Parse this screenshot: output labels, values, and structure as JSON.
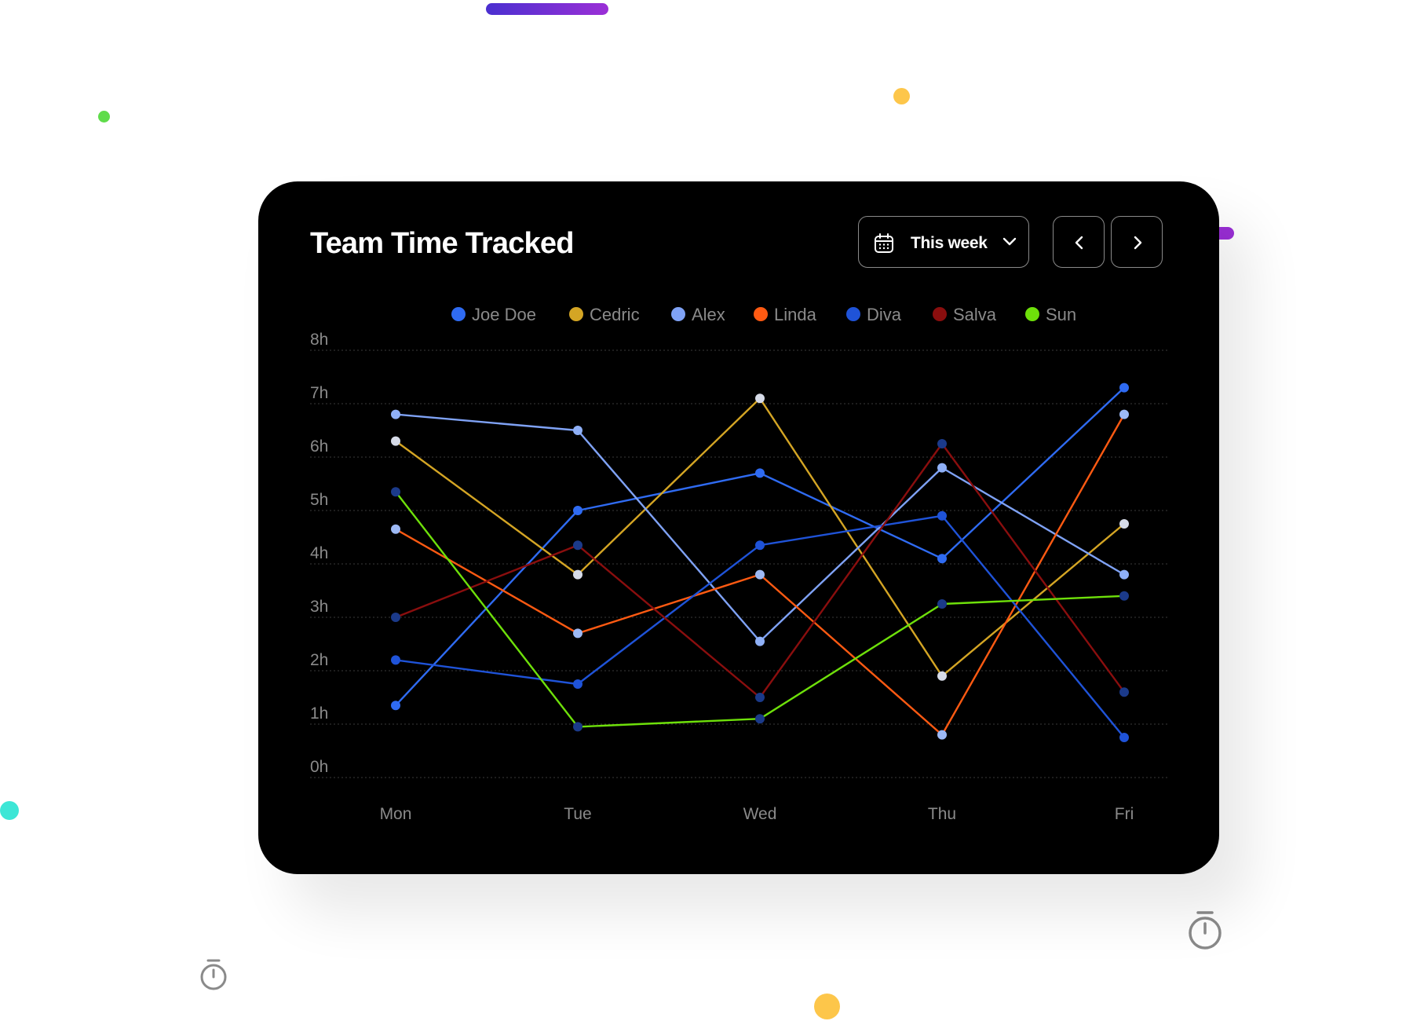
{
  "card": {
    "title": "Team Time Tracked",
    "period_label": "This week",
    "prev_icon": "chevron-left-icon",
    "next_icon": "chevron-right-icon",
    "calendar_icon": "calendar-icon",
    "dropdown_icon": "chevron-down-icon"
  },
  "decorations": {
    "stopwatch_icon": "stopwatch-icon"
  },
  "chart_data": {
    "type": "line",
    "title": "Team Time Tracked",
    "categories": [
      "Mon",
      "Tue",
      "Wed",
      "Thu",
      "Fri"
    ],
    "y_ticks": [
      "0h",
      "1h",
      "2h",
      "3h",
      "4h",
      "5h",
      "6h",
      "7h",
      "8h"
    ],
    "ylim": [
      0,
      8
    ],
    "grid": true,
    "legend_position": "top-center",
    "series": [
      {
        "name": "Joe Doe",
        "color": "#2f6bf2",
        "marker": "#2f6bf2",
        "values": [
          1.35,
          5.0,
          5.7,
          4.1,
          7.3
        ]
      },
      {
        "name": "Cedric",
        "color": "#d4a524",
        "marker": "#d6dbe8",
        "values": [
          6.3,
          3.8,
          7.1,
          1.9,
          4.75
        ]
      },
      {
        "name": "Alex",
        "color": "#7fa2f5",
        "marker": "#8fb0f7",
        "values": [
          6.8,
          6.5,
          2.55,
          5.8,
          3.8
        ]
      },
      {
        "name": "Linda",
        "color": "#ff5a12",
        "marker": "#9db9f5",
        "values": [
          4.65,
          2.7,
          3.8,
          0.8,
          6.8
        ]
      },
      {
        "name": "Diva",
        "color": "#1f53d8",
        "marker": "#1f53d8",
        "values": [
          2.2,
          1.75,
          4.35,
          4.9,
          0.75
        ]
      },
      {
        "name": "Salva",
        "color": "#8a0e0e",
        "marker": "#1b3a8a",
        "values": [
          3.0,
          4.35,
          1.5,
          6.25,
          1.6
        ]
      },
      {
        "name": "Sun",
        "color": "#6ee00a",
        "marker": "#1b3a8a",
        "values": [
          5.35,
          0.95,
          1.1,
          3.25,
          3.4
        ]
      }
    ]
  }
}
